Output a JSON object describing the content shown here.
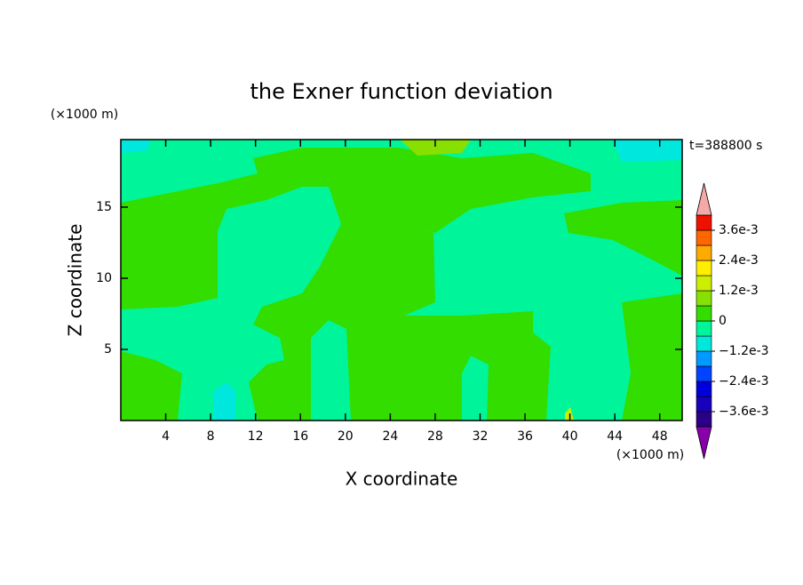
{
  "chart_data": {
    "type": "contour",
    "title": "the Exner function deviation",
    "xlabel": "X coordinate",
    "ylabel": "Z coordinate",
    "x_unit": "(×1000 m)",
    "y_unit": "(×1000 m)",
    "time_label": "t=388800 s",
    "xlim": [
      0,
      50
    ],
    "xticks": [
      4,
      8,
      12,
      16,
      20,
      24,
      28,
      32,
      36,
      40,
      44,
      48
    ],
    "ylim": [
      0,
      19.75
    ],
    "yticks": [
      5,
      10,
      15
    ],
    "colorbar": {
      "levels": [
        -0.0042,
        -0.0036,
        -0.003,
        -0.0024,
        -0.0018,
        -0.0012,
        -0.0006,
        0,
        0.0006,
        0.0012,
        0.0018,
        0.0024,
        0.003,
        0.0036,
        0.0042
      ],
      "colors": [
        "#2a0088",
        "#1a00bb",
        "#0000dd",
        "#0044ff",
        "#0099ff",
        "#00e8dd",
        "#00f59a",
        "#33dd00",
        "#88e000",
        "#ccee00",
        "#ffee00",
        "#ffaa00",
        "#ff6600",
        "#ee1100"
      ],
      "under_color": "#8800aa",
      "over_color": "#f4a8a8",
      "ticks": [
        {
          "value": 0.0036,
          "label": "3.6e-3"
        },
        {
          "value": 0.0024,
          "label": "2.4e-3"
        },
        {
          "value": 0.0012,
          "label": "1.2e-3"
        },
        0,
        {
          "value": -0.0012,
          "label": "−1.2e-3"
        },
        {
          "value": -0.0024,
          "label": "−2.4e-3"
        },
        {
          "value": -0.0036,
          "label": "−3.6e-3"
        }
      ]
    }
  }
}
